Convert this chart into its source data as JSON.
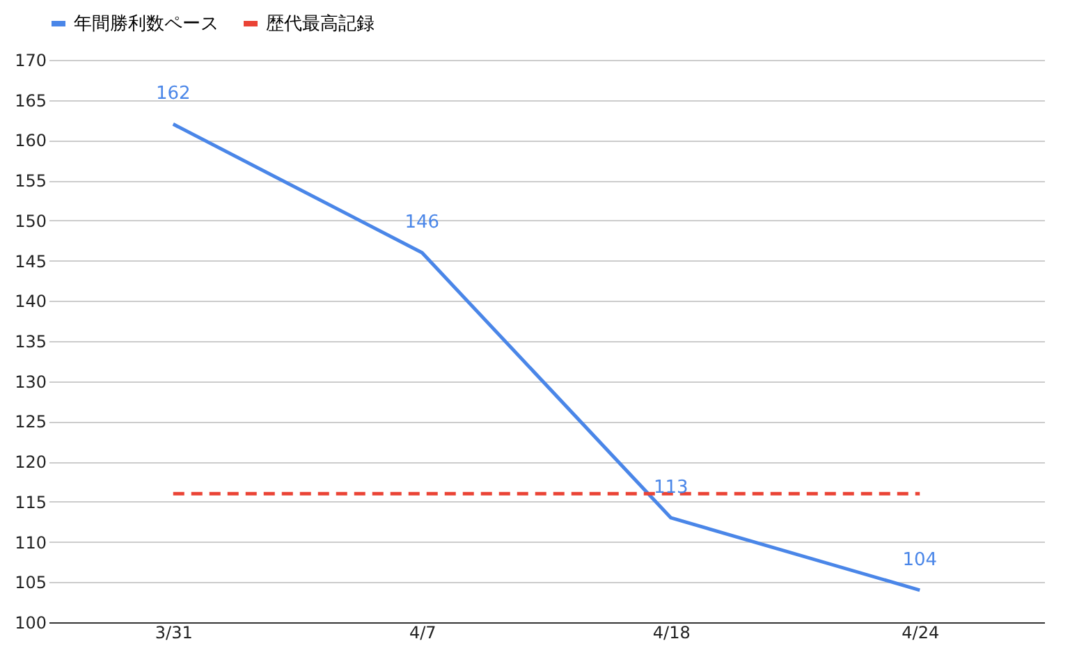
{
  "chart_data": {
    "type": "line",
    "categories": [
      "3/31",
      "4/7",
      "4/18",
      "4/24"
    ],
    "series": [
      {
        "name": "年間勝利数ペース",
        "color": "#4a86e8",
        "values": [
          162,
          146,
          113,
          104
        ],
        "value_labels": [
          "162",
          "146",
          "113",
          "104"
        ]
      },
      {
        "name": "歴代最高記録",
        "color": "#ea4335",
        "values": [
          116,
          116,
          116,
          116
        ],
        "line_style": "dashed"
      }
    ],
    "ylim": [
      100,
      170
    ],
    "yticks": [
      100,
      105,
      110,
      115,
      120,
      125,
      130,
      135,
      140,
      145,
      150,
      155,
      160,
      165,
      170
    ],
    "grid": "y",
    "legend": "top"
  }
}
